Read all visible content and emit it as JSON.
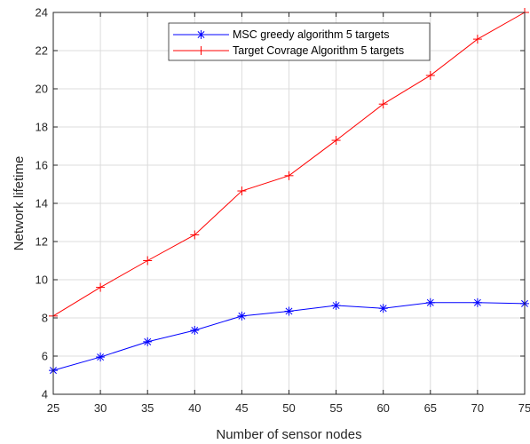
{
  "chart_data": {
    "type": "line",
    "title": "",
    "xlabel": "Number of sensor nodes",
    "ylabel": "Network lifetime",
    "xlim": [
      25,
      75
    ],
    "ylim": [
      4,
      24
    ],
    "xticks": [
      25,
      30,
      35,
      40,
      45,
      50,
      55,
      60,
      65,
      70,
      75
    ],
    "yticks": [
      4,
      6,
      8,
      10,
      12,
      14,
      16,
      18,
      20,
      22,
      24
    ],
    "grid": true,
    "legend_position": "top-center",
    "x": [
      25,
      30,
      35,
      40,
      45,
      50,
      55,
      60,
      65,
      70,
      75
    ],
    "series": [
      {
        "name": "MSC greedy algorithm 5 targets",
        "color": "#0000ff",
        "marker": "asterisk",
        "values": [
          5.25,
          5.95,
          6.75,
          7.35,
          8.1,
          8.35,
          8.65,
          8.5,
          8.8,
          8.8,
          8.75
        ]
      },
      {
        "name": "Target Covrage Algorithm 5 targets",
        "color": "#ff0000",
        "marker": "plus",
        "values": [
          8.1,
          9.6,
          11.0,
          12.35,
          14.65,
          15.45,
          17.3,
          19.2,
          20.7,
          22.6,
          24.0
        ]
      }
    ]
  }
}
